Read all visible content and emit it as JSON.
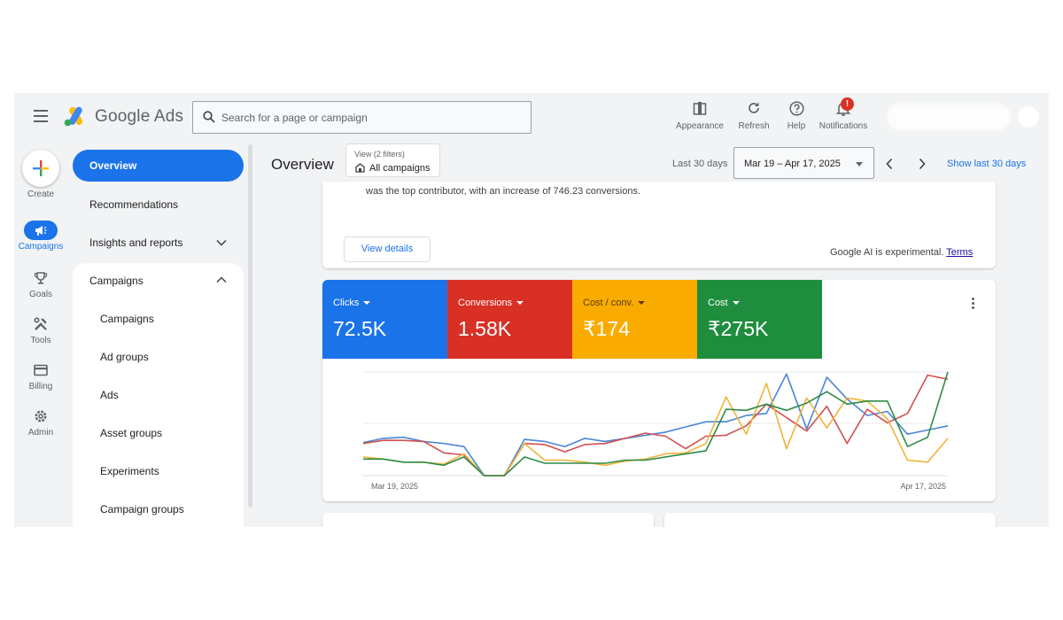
{
  "app": {
    "brand": "Google Ads"
  },
  "search": {
    "placeholder": "Search for a page or campaign"
  },
  "toolbar": [
    {
      "label": "Appearance",
      "icon": "appearance-icon"
    },
    {
      "label": "Refresh",
      "icon": "refresh-icon"
    },
    {
      "label": "Help",
      "icon": "help-icon"
    },
    {
      "label": "Notifications",
      "icon": "bell-icon",
      "badge": "!"
    }
  ],
  "rail": [
    {
      "label": "Create",
      "icon": "plus-icon"
    },
    {
      "label": "Campaigns",
      "icon": "megaphone-icon",
      "active": true
    },
    {
      "label": "Goals",
      "icon": "trophy-icon"
    },
    {
      "label": "Tools",
      "icon": "tools-icon"
    },
    {
      "label": "Billing",
      "icon": "card-icon"
    },
    {
      "label": "Admin",
      "icon": "gear-icon"
    }
  ],
  "nav": {
    "overview": "Overview",
    "recommendations": "Recommendations",
    "insights": "Insights and reports",
    "campaigns_section": "Campaigns",
    "sub": [
      "Campaigns",
      "Ad groups",
      "Ads",
      "Asset groups",
      "Experiments",
      "Campaign groups"
    ]
  },
  "header": {
    "title": "Overview",
    "view_filter": "View (2 filters)",
    "view_scope": "All campaigns",
    "range_label": "Last 30 days",
    "date_range": "Mar 19 – Apr 17, 2025",
    "show_last": "Show last 30 days"
  },
  "ai_card": {
    "text": "was the top contributor, with an increase of 746.23 conversions.",
    "view_details": "View details",
    "experimental": "Google AI is experimental.",
    "terms": "Terms"
  },
  "metrics": [
    {
      "label": "Clicks",
      "value": "72.5K",
      "color": "#1a73e8"
    },
    {
      "label": "Conversions",
      "value": "1.58K",
      "color": "#d93025"
    },
    {
      "label": "Cost / conv.",
      "value": "₹174",
      "color": "#f9ab00"
    },
    {
      "label": "Cost",
      "value": "₹275K",
      "color": "#1e8e3e"
    }
  ],
  "chart_data": {
    "type": "line",
    "x_start_label": "Mar 19, 2025",
    "x_end_label": "Apr 17, 2025",
    "series": [
      {
        "name": "Clicks",
        "color": "#4a86d8",
        "values": [
          0.32,
          0.36,
          0.37,
          0.33,
          0.31,
          0.28,
          0,
          0,
          0.35,
          0.33,
          0.28,
          0.36,
          0.33,
          0.36,
          0.39,
          0.42,
          0.47,
          0.52,
          0.52,
          0.58,
          0.6,
          0.98,
          0.45,
          0.95,
          0.74,
          0.58,
          0.62,
          0.4,
          0.44,
          0.48
        ]
      },
      {
        "name": "Conversions",
        "color": "#d25050",
        "values": [
          0.31,
          0.34,
          0.34,
          0.33,
          0.22,
          0.2,
          0,
          0,
          0.31,
          0.3,
          0.23,
          0.3,
          0.31,
          0.36,
          0.41,
          0.38,
          0.26,
          0.38,
          0.39,
          0.48,
          0.69,
          0.56,
          0.43,
          0.67,
          0.31,
          0.64,
          0.51,
          0.6,
          0.97,
          0.93
        ]
      },
      {
        "name": "Cost / conv.",
        "color": "#f0b43c",
        "values": [
          0.18,
          0.16,
          0.13,
          0.13,
          0.11,
          0.21,
          0,
          0,
          0.31,
          0.15,
          0.15,
          0.13,
          0.1,
          0.14,
          0.16,
          0.21,
          0.22,
          0.31,
          0.76,
          0.4,
          0.89,
          0.26,
          0.75,
          0.46,
          0.75,
          0.72,
          0.55,
          0.15,
          0.13,
          0.36
        ]
      },
      {
        "name": "Cost",
        "color": "#2e8b46",
        "values": [
          0.16,
          0.16,
          0.13,
          0.13,
          0.1,
          0.18,
          0,
          0,
          0.18,
          0.12,
          0.12,
          0.12,
          0.12,
          0.15,
          0.15,
          0.18,
          0.21,
          0.24,
          0.64,
          0.63,
          0.69,
          0.63,
          0.7,
          0.81,
          0.69,
          0.72,
          0.72,
          0.28,
          0.37,
          1.0
        ]
      }
    ]
  }
}
